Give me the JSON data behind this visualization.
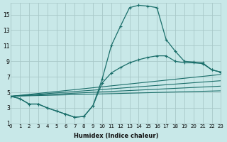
{
  "xlabel": "Humidex (Indice chaleur)",
  "bg_color": "#c8e8e8",
  "line_color": "#1a6e6a",
  "grid_color": "#a8c8c8",
  "xlim": [
    0,
    23
  ],
  "ylim": [
    1,
    16.5
  ],
  "xticks": [
    0,
    1,
    2,
    3,
    4,
    5,
    6,
    7,
    8,
    9,
    10,
    11,
    12,
    13,
    14,
    15,
    16,
    17,
    18,
    19,
    20,
    21,
    22,
    23
  ],
  "yticks": [
    1,
    3,
    5,
    7,
    9,
    11,
    13,
    15
  ],
  "main_curve_x": [
    0,
    1,
    2,
    3,
    4,
    5,
    6,
    7,
    8,
    9,
    10,
    11,
    12,
    13,
    14,
    15,
    16,
    17,
    18,
    19,
    20,
    21,
    22,
    23
  ],
  "main_curve_y": [
    4.5,
    4.2,
    3.5,
    3.5,
    3.0,
    2.6,
    2.2,
    1.8,
    1.9,
    3.3,
    6.7,
    11.0,
    13.5,
    15.9,
    16.2,
    16.1,
    15.9,
    11.8,
    10.3,
    9.0,
    8.9,
    8.8,
    7.9,
    7.6
  ],
  "line2_x": [
    0,
    1,
    2,
    3,
    4,
    5,
    6,
    7,
    8,
    9,
    10,
    11,
    12,
    13,
    14,
    15,
    16,
    17,
    18,
    19,
    20,
    21,
    22,
    23
  ],
  "line2_y": [
    4.5,
    4.2,
    3.5,
    3.5,
    3.0,
    2.6,
    2.2,
    1.8,
    1.9,
    3.3,
    6.2,
    7.5,
    8.2,
    8.8,
    9.2,
    9.5,
    9.7,
    9.7,
    9.0,
    8.8,
    8.8,
    8.7,
    7.9,
    7.6
  ],
  "straight_lines": [
    [
      0.0,
      4.5,
      23.0,
      5.2
    ],
    [
      0.0,
      4.5,
      23.0,
      5.8
    ],
    [
      0.0,
      4.5,
      23.0,
      6.5
    ],
    [
      0.0,
      4.5,
      23.0,
      7.3
    ]
  ]
}
